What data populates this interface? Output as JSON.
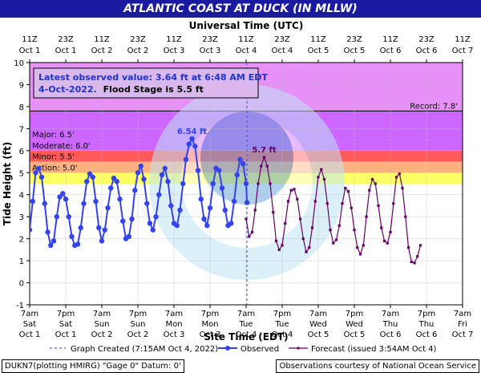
{
  "title": "ATLANTIC COAST AT DUCK (IN MLLW)",
  "colors": {
    "title_bg": "#1a1aa0",
    "record_band": "#e690f8",
    "major_band": "#cc66ff",
    "moderate_band": "#ff5a5a",
    "minor_band": "#ffb27f",
    "action_band": "#ffff66",
    "observed": "#3344ee",
    "forecast": "#660066"
  },
  "info_box": {
    "line1": "Latest observed value: 3.64 ft at 6:48 AM EDT",
    "line2a": "4-Oct-2022.",
    "line2b": "Flood Stage is 5.5 ft"
  },
  "footer": {
    "left": "DUKN7(plotting HMIRG) \"Gage 0\" Datum: 0'",
    "right": "Observations courtesy of National Ocean Service"
  },
  "chart_data": {
    "type": "line",
    "top_axis_title": "Universal Time (UTC)",
    "bottom_axis_title": "Site Time (EDT)",
    "ylabel": "Tide Height (ft)",
    "ylim": [
      -1,
      10
    ],
    "yticks": [
      -1,
      0,
      1,
      2,
      3,
      4,
      5,
      6,
      7,
      8,
      9,
      10
    ],
    "x_range_hours": [
      0,
      144
    ],
    "top_ticks": [
      {
        "line1": "11Z",
        "line2": "Oct 1"
      },
      {
        "line1": "23Z",
        "line2": "Oct 1"
      },
      {
        "line1": "11Z",
        "line2": "Oct 2"
      },
      {
        "line1": "23Z",
        "line2": "Oct 2"
      },
      {
        "line1": "11Z",
        "line2": "Oct 3"
      },
      {
        "line1": "23Z",
        "line2": "Oct 3"
      },
      {
        "line1": "11Z",
        "line2": "Oct 4"
      },
      {
        "line1": "23Z",
        "line2": "Oct 4"
      },
      {
        "line1": "11Z",
        "line2": "Oct 5"
      },
      {
        "line1": "23Z",
        "line2": "Oct 5"
      },
      {
        "line1": "11Z",
        "line2": "Oct 6"
      },
      {
        "line1": "23Z",
        "line2": "Oct 6"
      },
      {
        "line1": "11Z",
        "line2": "Oct 7"
      }
    ],
    "bottom_ticks": [
      {
        "line1": "7am",
        "line2": "Sat",
        "line3": "Oct 1"
      },
      {
        "line1": "7pm",
        "line2": "Sat",
        "line3": "Oct 1"
      },
      {
        "line1": "7am",
        "line2": "Sun",
        "line3": "Oct 2"
      },
      {
        "line1": "7pm",
        "line2": "Sun",
        "line3": "Oct 2"
      },
      {
        "line1": "7am",
        "line2": "Mon",
        "line3": "Oct 3"
      },
      {
        "line1": "7pm",
        "line2": "Mon",
        "line3": "Oct 3"
      },
      {
        "line1": "7am",
        "line2": "Tue",
        "line3": "Oct 4"
      },
      {
        "line1": "7pm",
        "line2": "Tue",
        "line3": "Oct 4"
      },
      {
        "line1": "7am",
        "line2": "Wed",
        "line3": "Oct 5"
      },
      {
        "line1": "7pm",
        "line2": "Wed",
        "line3": "Oct 5"
      },
      {
        "line1": "7am",
        "line2": "Thu",
        "line3": "Oct 6"
      },
      {
        "line1": "7pm",
        "line2": "Thu",
        "line3": "Oct 6"
      },
      {
        "line1": "7am",
        "line2": "Fri",
        "line3": "Oct 7"
      }
    ],
    "stages": [
      {
        "name": "Record",
        "label": "Record: 7.8'",
        "value": 7.8
      },
      {
        "name": "Major",
        "label": "Major: 6.5'",
        "value": 6.5
      },
      {
        "name": "Moderate",
        "label": "Moderate: 6.0'",
        "value": 6.0
      },
      {
        "name": "Minor",
        "label": "Minor: 5.5'",
        "value": 5.5
      },
      {
        "name": "Action",
        "label": "Action: 5.0'",
        "value": 5.0
      }
    ],
    "graph_created_hour": 72.25,
    "annotations": [
      {
        "text": "6.54 ft",
        "x": 54,
        "y": 6.54,
        "series": "Observed"
      },
      {
        "text": "5.7 ft",
        "x": 78,
        "y": 5.7,
        "series": "Forecast"
      }
    ],
    "series": [
      {
        "name": "Observed",
        "points": [
          [
            0,
            2.4
          ],
          [
            1,
            3.7
          ],
          [
            2,
            5.0
          ],
          [
            3,
            5.2
          ],
          [
            4,
            4.8
          ],
          [
            5,
            3.6
          ],
          [
            6,
            2.3
          ],
          [
            7,
            1.7
          ],
          [
            8,
            1.9
          ],
          [
            9,
            3.0
          ],
          [
            10,
            3.9
          ],
          [
            11,
            4.05
          ],
          [
            12,
            3.8
          ],
          [
            13,
            3.0
          ],
          [
            14,
            2.1
          ],
          [
            15,
            1.7
          ],
          [
            16,
            1.75
          ],
          [
            17,
            2.5
          ],
          [
            18,
            3.6
          ],
          [
            19,
            4.6
          ],
          [
            20,
            4.95
          ],
          [
            21,
            4.8
          ],
          [
            22,
            3.7
          ],
          [
            23,
            2.5
          ],
          [
            24,
            1.9
          ],
          [
            25,
            2.4
          ],
          [
            26,
            3.4
          ],
          [
            27,
            4.3
          ],
          [
            28,
            4.75
          ],
          [
            29,
            4.6
          ],
          [
            30,
            3.8
          ],
          [
            31,
            2.8
          ],
          [
            32,
            2.0
          ],
          [
            33,
            2.1
          ],
          [
            34,
            2.9
          ],
          [
            35,
            4.2
          ],
          [
            36,
            5.0
          ],
          [
            37,
            5.3
          ],
          [
            38,
            4.7
          ],
          [
            39,
            3.6
          ],
          [
            40,
            2.7
          ],
          [
            41,
            2.4
          ],
          [
            42,
            3.0
          ],
          [
            43,
            4.0
          ],
          [
            44,
            4.9
          ],
          [
            45,
            5.2
          ],
          [
            46,
            4.6
          ],
          [
            47,
            3.5
          ],
          [
            48,
            2.7
          ],
          [
            49,
            2.6
          ],
          [
            50,
            3.3
          ],
          [
            51,
            4.5
          ],
          [
            52,
            5.6
          ],
          [
            53,
            6.3
          ],
          [
            54,
            6.54
          ],
          [
            55,
            6.2
          ],
          [
            56,
            5.1
          ],
          [
            57,
            3.8
          ],
          [
            58,
            2.9
          ],
          [
            59,
            2.6
          ],
          [
            60,
            3.4
          ],
          [
            61,
            4.5
          ],
          [
            62,
            5.2
          ],
          [
            63,
            5.1
          ],
          [
            64,
            4.3
          ],
          [
            65,
            3.3
          ],
          [
            66,
            2.6
          ],
          [
            67,
            2.7
          ],
          [
            68,
            3.7
          ],
          [
            69,
            4.9
          ],
          [
            70,
            5.6
          ],
          [
            71,
            5.4
          ],
          [
            72,
            4.5
          ],
          [
            72.3,
            3.64
          ]
        ]
      },
      {
        "name": "Forecast",
        "points": [
          [
            72,
            2.9
          ],
          [
            73,
            2.1
          ],
          [
            74,
            2.3
          ],
          [
            75,
            3.3
          ],
          [
            76,
            4.5
          ],
          [
            77,
            5.3
          ],
          [
            78,
            5.7
          ],
          [
            79,
            5.3
          ],
          [
            80,
            4.5
          ],
          [
            81,
            3.2
          ],
          [
            82,
            1.9
          ],
          [
            83,
            1.5
          ],
          [
            84,
            1.7
          ],
          [
            85,
            2.7
          ],
          [
            86,
            3.7
          ],
          [
            87,
            4.2
          ],
          [
            88,
            4.25
          ],
          [
            89,
            3.8
          ],
          [
            90,
            2.9
          ],
          [
            91,
            2.0
          ],
          [
            92,
            1.4
          ],
          [
            93,
            1.6
          ],
          [
            94,
            2.5
          ],
          [
            95,
            3.7
          ],
          [
            96,
            4.8
          ],
          [
            97,
            5.15
          ],
          [
            98,
            4.7
          ],
          [
            99,
            3.6
          ],
          [
            100,
            2.4
          ],
          [
            101,
            1.8
          ],
          [
            102,
            1.95
          ],
          [
            103,
            2.6
          ],
          [
            104,
            3.6
          ],
          [
            105,
            4.3
          ],
          [
            106,
            4.15
          ],
          [
            107,
            3.4
          ],
          [
            108,
            2.4
          ],
          [
            109,
            1.6
          ],
          [
            110,
            1.3
          ],
          [
            111,
            1.7
          ],
          [
            112,
            3.0
          ],
          [
            113,
            4.2
          ],
          [
            114,
            4.7
          ],
          [
            115,
            4.5
          ],
          [
            116,
            3.5
          ],
          [
            117,
            2.5
          ],
          [
            118,
            1.9
          ],
          [
            119,
            1.8
          ],
          [
            120,
            2.3
          ],
          [
            121,
            3.6
          ],
          [
            122,
            4.8
          ],
          [
            123,
            4.95
          ],
          [
            124,
            4.3
          ],
          [
            125,
            3.0
          ],
          [
            126,
            1.6
          ],
          [
            127,
            0.95
          ],
          [
            128,
            0.9
          ],
          [
            129,
            1.2
          ],
          [
            130,
            1.7
          ]
        ]
      }
    ],
    "legend": {
      "graph_created": "Graph Created (7:15AM Oct 4, 2022)",
      "observed": "Observed",
      "forecast": "Forecast (issued 3:54AM Oct 4)"
    }
  }
}
